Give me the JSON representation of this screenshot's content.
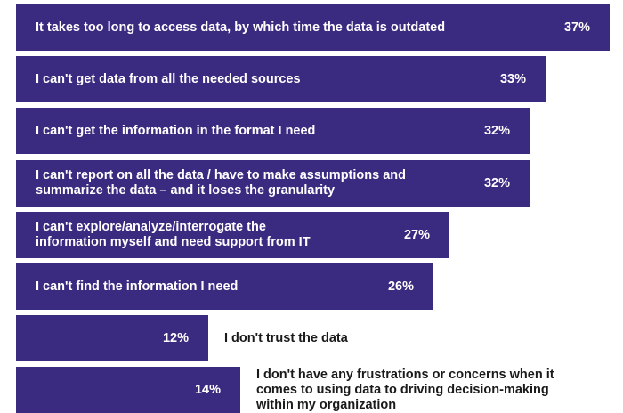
{
  "chart_data": {
    "type": "bar",
    "orientation": "horizontal",
    "xlim": [
      0,
      37
    ],
    "bar_color": "#3a2b80",
    "categories": [
      "It takes too long to access data, by which time the data is outdated",
      "I can't get data from all the needed sources",
      "I can't get the information in the format I need",
      "I can't report on all the data / have to make assumptions and\nsummarize the data – and it loses the granularity",
      "I can't explore/analyze/interrogate the\ninformation myself and need support from IT",
      "I can't find the information I need",
      "I don't trust the data",
      "I don't have any frustrations or concerns when it\ncomes to using data to driving decision-making\nwithin my organization"
    ],
    "values": [
      37,
      33,
      32,
      32,
      27,
      26,
      12,
      14
    ],
    "value_labels": [
      "37%",
      "33%",
      "32%",
      "32%",
      "27%",
      "26%",
      "12%",
      "14%"
    ],
    "label_position": [
      "inside",
      "inside",
      "inside",
      "inside",
      "inside",
      "inside",
      "outside",
      "outside"
    ]
  }
}
